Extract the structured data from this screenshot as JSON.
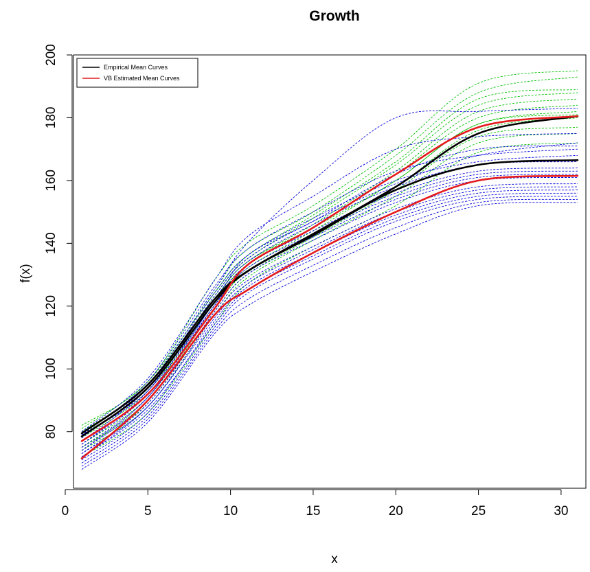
{
  "chart_data": {
    "type": "line",
    "title": "Growth",
    "xlabel": "x",
    "ylabel": "f(x)",
    "xlim": [
      0.5,
      31.5
    ],
    "ylim": [
      62,
      200
    ],
    "xticks": [
      0,
      5,
      10,
      15,
      20,
      25,
      30
    ],
    "yticks": [
      80,
      100,
      120,
      140,
      160,
      180,
      200
    ],
    "grid": false,
    "legend_position": "top-left",
    "legend": [
      {
        "label": "Empirical Mean Curves",
        "color": "#000000"
      },
      {
        "label": "VB Estimated Mean Curves",
        "color": "#e41a1c"
      }
    ],
    "x": [
      1,
      5,
      9,
      11,
      15,
      20,
      25,
      31
    ],
    "series": [
      {
        "group": "empirical",
        "color": "#000000",
        "values": [
          79.5,
          95,
          122,
          131,
          143,
          158,
          175,
          180.5
        ]
      },
      {
        "group": "empirical",
        "color": "#000000",
        "values": [
          78.5,
          94,
          121,
          131,
          142.5,
          157,
          165,
          166.5
        ]
      },
      {
        "group": "vb",
        "color": "#e41a1c",
        "values": [
          77,
          92,
          119,
          133,
          145,
          162,
          177,
          180.5
        ]
      },
      {
        "group": "vb",
        "color": "#e41a1c",
        "values": [
          71.5,
          90,
          117,
          125,
          137,
          150,
          160,
          161.5
        ]
      }
    ],
    "background_curve_colors": {
      "boys": "#00c000",
      "girls": "#0000dd"
    },
    "background_curves": [
      {
        "color": "#00c000",
        "values": [
          82,
          96,
          128,
          140,
          152,
          170,
          191,
          195
        ]
      },
      {
        "color": "#00c000",
        "values": [
          80,
          95,
          125,
          138,
          150,
          168,
          188,
          193
        ]
      },
      {
        "color": "#00c000",
        "values": [
          81,
          96,
          124,
          136,
          149,
          166,
          186,
          189
        ]
      },
      {
        "color": "#00c000",
        "values": [
          79,
          94,
          123,
          135,
          148,
          165,
          184,
          188
        ]
      },
      {
        "color": "#00c000",
        "values": [
          78,
          93,
          122,
          134,
          146,
          163,
          182,
          186
        ]
      },
      {
        "color": "#00c000",
        "values": [
          77,
          92,
          121,
          133,
          145,
          162,
          180,
          184
        ]
      },
      {
        "color": "#00c000",
        "values": [
          76,
          91,
          120,
          132,
          144,
          160,
          178,
          182
        ]
      },
      {
        "color": "#00c000",
        "values": [
          75,
          90,
          119,
          131,
          143,
          158,
          176,
          180
        ]
      },
      {
        "color": "#00c000",
        "values": [
          75,
          89,
          118,
          130,
          142,
          157,
          174,
          177
        ]
      },
      {
        "color": "#00c000",
        "values": [
          74,
          88,
          117,
          129,
          141,
          155,
          172,
          175
        ]
      },
      {
        "color": "#00c000",
        "values": [
          80,
          95,
          122,
          134,
          145,
          160,
          178,
          181
        ]
      },
      {
        "color": "#00c000",
        "values": [
          72,
          86,
          114,
          127,
          139,
          152,
          169,
          172
        ]
      },
      {
        "color": "#0000dd",
        "values": [
          79,
          96,
          126,
          138,
          150,
          163,
          168,
          170
        ]
      },
      {
        "color": "#0000dd",
        "values": [
          77,
          94,
          124,
          136,
          148,
          160,
          166,
          168
        ]
      },
      {
        "color": "#0000dd",
        "values": [
          76,
          92,
          122,
          134,
          146,
          158,
          165,
          166
        ]
      },
      {
        "color": "#0000dd",
        "values": [
          75,
          91,
          121,
          133,
          144,
          156,
          163,
          164
        ]
      },
      {
        "color": "#0000dd",
        "values": [
          74,
          90,
          120,
          132,
          143,
          155,
          162,
          163
        ]
      },
      {
        "color": "#0000dd",
        "values": [
          73,
          89,
          118,
          130,
          141,
          153,
          160,
          161
        ]
      },
      {
        "color": "#0000dd",
        "values": [
          72,
          88,
          117,
          128,
          139,
          151,
          158,
          159
        ]
      },
      {
        "color": "#0000dd",
        "values": [
          71,
          86,
          115,
          126,
          137,
          149,
          156,
          157
        ]
      },
      {
        "color": "#0000dd",
        "values": [
          70,
          85,
          113,
          124,
          135,
          147,
          154,
          155
        ]
      },
      {
        "color": "#0000dd",
        "values": [
          69,
          84,
          112,
          122,
          133,
          145,
          153,
          154
        ]
      },
      {
        "color": "#0000dd",
        "values": [
          68,
          83,
          111,
          120,
          131,
          143,
          152,
          153
        ]
      },
      {
        "color": "#0000dd",
        "values": [
          80,
          97,
          128,
          142,
          155,
          170,
          174,
          175
        ]
      },
      {
        "color": "#0000dd",
        "values": [
          78,
          95,
          125,
          140,
          160,
          180,
          182,
          183
        ]
      },
      {
        "color": "#0000dd",
        "values": [
          76,
          93,
          123,
          135,
          147,
          159,
          168,
          172
        ]
      },
      {
        "color": "#0000dd",
        "values": [
          74,
          91,
          120,
          131,
          142,
          154,
          161,
          162
        ]
      },
      {
        "color": "#0000dd",
        "values": [
          73,
          88,
          116,
          127,
          138,
          150,
          157,
          158
        ]
      },
      {
        "color": "#0000dd",
        "values": [
          79,
          93,
          121,
          136,
          147,
          162,
          170,
          171
        ]
      },
      {
        "color": "#0000dd",
        "values": [
          72,
          87,
          114,
          125,
          136,
          148,
          155,
          156
        ]
      }
    ]
  }
}
